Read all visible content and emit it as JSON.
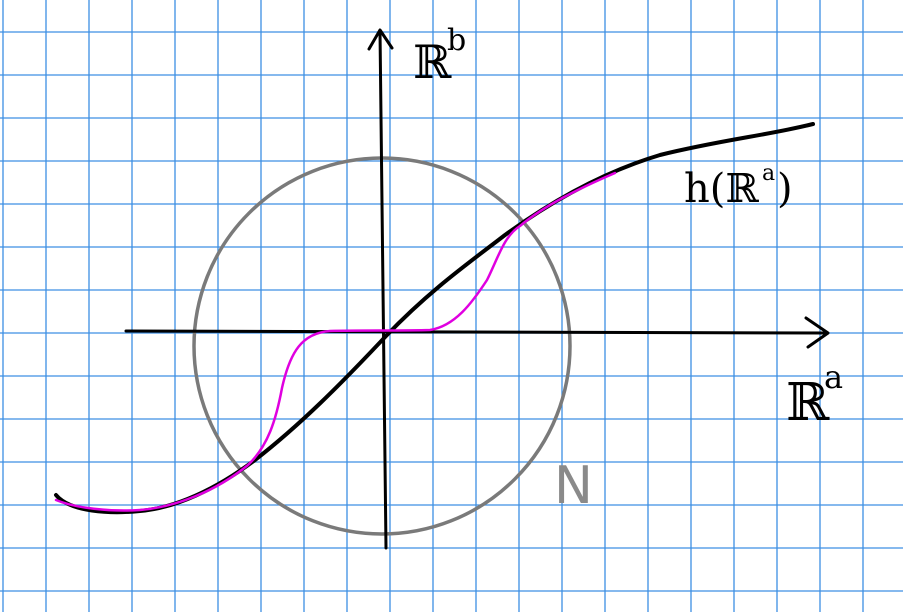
{
  "diagram": {
    "labels": {
      "axis_x": "ℝ",
      "axis_x_sup": "a",
      "axis_y": "ℝ",
      "axis_y_sup": "b",
      "curve_label": "h(ℝ",
      "curve_label_sup": "a",
      "curve_label_close": ")",
      "neighborhood": "N"
    },
    "colors": {
      "paper": "#ffffff",
      "grid": "#3d8fe3",
      "axes": "#000000",
      "curve_h": "#000000",
      "curve_perturbed": "#e000e0",
      "circle": "#7a7a7a",
      "neighborhood_label": "#8a8a8a"
    }
  }
}
